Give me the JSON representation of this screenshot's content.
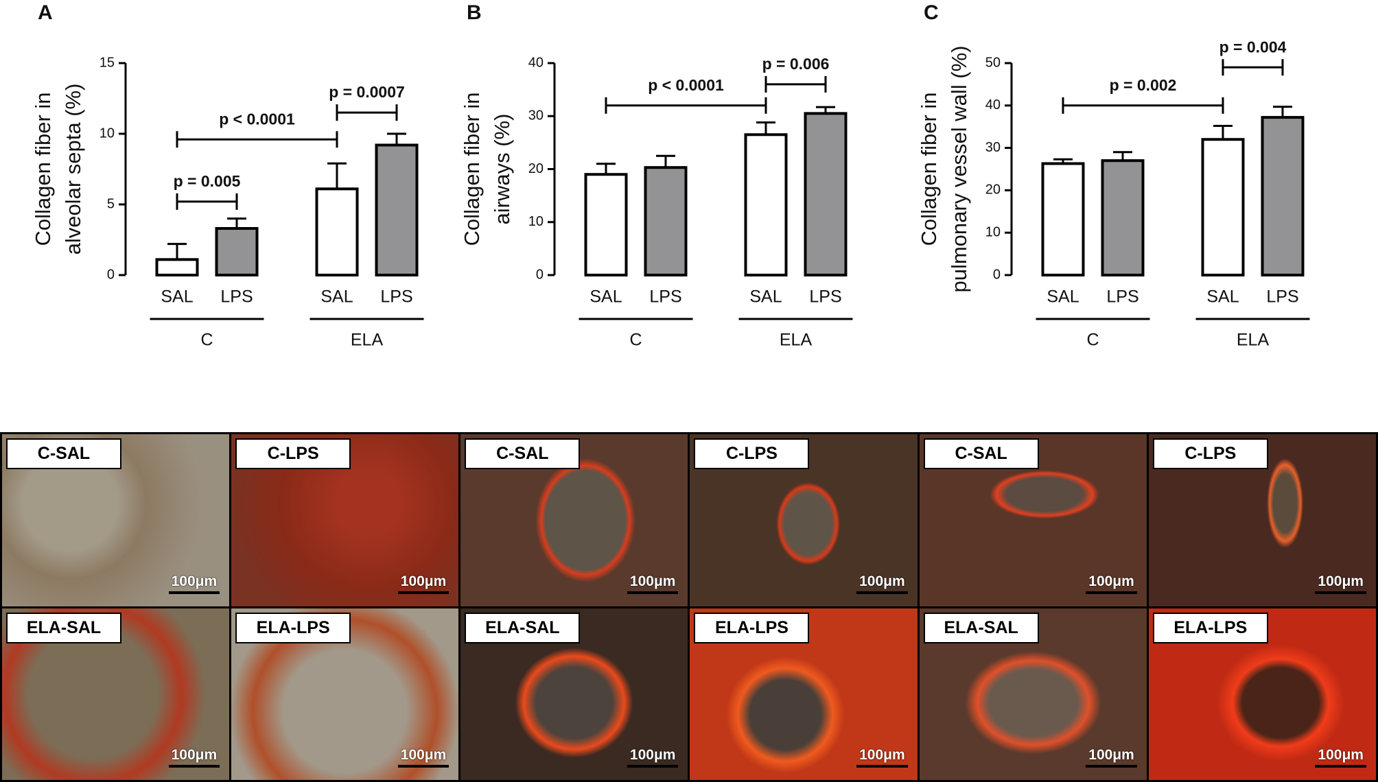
{
  "chart_data": [
    {
      "type": "bar",
      "panel": "A",
      "ylabel": [
        "Collagen fiber in",
        "alveolar septa (%)"
      ],
      "categories": [
        "C",
        "ELA"
      ],
      "series": [
        {
          "name": "SAL",
          "color": "#ffffff",
          "values": [
            1.1,
            6.1
          ],
          "errors": [
            1.1,
            1.8
          ]
        },
        {
          "name": "LPS",
          "color": "#939396",
          "values": [
            3.3,
            9.2
          ],
          "errors": [
            0.7,
            0.8
          ]
        }
      ],
      "ylim": [
        0,
        15
      ],
      "yticks": [
        0,
        5,
        10,
        15
      ],
      "annotations": [
        "p = 0.005",
        "p < 0.0001",
        "p = 0.0007"
      ]
    },
    {
      "type": "bar",
      "panel": "B",
      "ylabel": [
        "Collagen fiber in",
        "airways (%)"
      ],
      "categories": [
        "C",
        "ELA"
      ],
      "series": [
        {
          "name": "SAL",
          "color": "#ffffff",
          "values": [
            19,
            26.5
          ],
          "errors": [
            2,
            2.3
          ]
        },
        {
          "name": "LPS",
          "color": "#939396",
          "values": [
            20.3,
            30.5
          ],
          "errors": [
            2.2,
            1.2
          ]
        }
      ],
      "ylim": [
        0,
        40
      ],
      "yticks": [
        0,
        10,
        20,
        30,
        40
      ],
      "annotations": [
        "p < 0.0001",
        "p = 0.006"
      ]
    },
    {
      "type": "bar",
      "panel": "C",
      "ylabel": [
        "Collagen fiber in",
        "pulmonary vessel wall (%)"
      ],
      "categories": [
        "C",
        "ELA"
      ],
      "series": [
        {
          "name": "SAL",
          "color": "#ffffff",
          "values": [
            26.3,
            32
          ],
          "errors": [
            1,
            3.2
          ]
        },
        {
          "name": "LPS",
          "color": "#939396",
          "values": [
            27,
            37.2
          ],
          "errors": [
            2,
            2.5
          ]
        }
      ],
      "ylim": [
        0,
        50
      ],
      "yticks": [
        0,
        10,
        20,
        30,
        40,
        50
      ],
      "annotations": [
        "p = 0.002",
        "p = 0.004"
      ]
    }
  ],
  "micrographs": [
    {
      "label": "C-SAL",
      "scale": "100μm"
    },
    {
      "label": "C-LPS",
      "scale": "100μm"
    },
    {
      "label": "C-SAL",
      "scale": "100μm"
    },
    {
      "label": "C-LPS",
      "scale": "100μm"
    },
    {
      "label": "C-SAL",
      "scale": "100μm"
    },
    {
      "label": "C-LPS",
      "scale": "100μm"
    },
    {
      "label": "ELA-SAL",
      "scale": "100μm"
    },
    {
      "label": "ELA-LPS",
      "scale": "100μm"
    },
    {
      "label": "ELA-SAL",
      "scale": "100μm"
    },
    {
      "label": "ELA-LPS",
      "scale": "100μm"
    },
    {
      "label": "ELA-SAL",
      "scale": "100μm"
    },
    {
      "label": "ELA-LPS",
      "scale": "100μm"
    }
  ]
}
